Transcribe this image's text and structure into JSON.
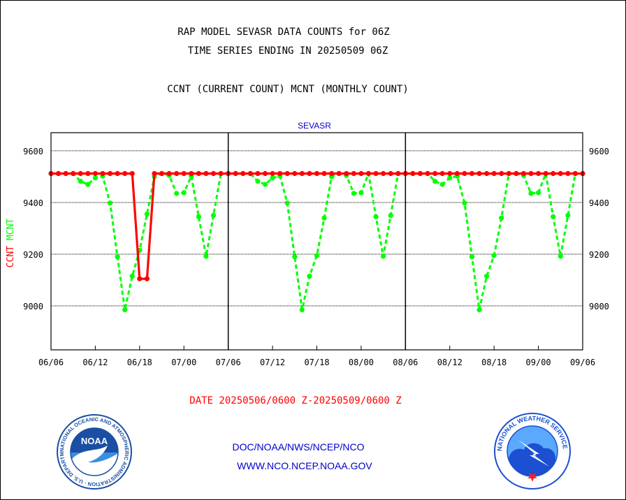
{
  "header": {
    "title_line1": "RAP MODEL SEVASR DATA COUNTS for 06Z",
    "title_line2": "TIME SERIES ENDING IN 20250509 06Z",
    "subtitle": "CCNT (CURRENT COUNT) MCNT (MONTHLY COUNT)"
  },
  "chart_data": {
    "type": "line",
    "title": "SEVASR",
    "ylabel_parts": [
      {
        "text": "CCNT",
        "color": "#ff0000"
      },
      {
        "text": "MCNT",
        "color": "#00ff00"
      }
    ],
    "ylim": [
      8830,
      9670
    ],
    "yticks": [
      9000,
      9200,
      9400,
      9600
    ],
    "grid": true,
    "x_ticks": [
      "06/06",
      "06/12",
      "06/18",
      "07/00",
      "07/06",
      "07/12",
      "07/18",
      "08/00",
      "08/06",
      "08/12",
      "08/18",
      "09/00",
      "09/06"
    ],
    "x_tick_positions": [
      0,
      6,
      12,
      18,
      24,
      30,
      36,
      42,
      48,
      54,
      60,
      66,
      72
    ],
    "x_range": [
      0,
      72
    ],
    "panel_dividers": [
      24,
      48
    ],
    "series": [
      {
        "name": "CCNT",
        "color": "#ff0000",
        "style": "solid",
        "points": [
          [
            0,
            9512
          ],
          [
            1,
            9512
          ],
          [
            2,
            9512
          ],
          [
            3,
            9512
          ],
          [
            4,
            9512
          ],
          [
            5,
            9512
          ],
          [
            6,
            9512
          ],
          [
            7,
            9512
          ],
          [
            8,
            9512
          ],
          [
            9,
            9512
          ],
          [
            10,
            9512
          ],
          [
            11,
            9512
          ],
          [
            12,
            9105
          ],
          [
            13,
            9105
          ],
          [
            14,
            9512
          ],
          [
            15,
            9512
          ],
          [
            16,
            9512
          ],
          [
            17,
            9512
          ],
          [
            18,
            9512
          ],
          [
            19,
            9512
          ],
          [
            20,
            9512
          ],
          [
            21,
            9512
          ],
          [
            22,
            9512
          ],
          [
            23,
            9512
          ],
          [
            24,
            9512
          ],
          [
            25,
            9512
          ],
          [
            26,
            9512
          ],
          [
            27,
            9512
          ],
          [
            28,
            9512
          ],
          [
            29,
            9512
          ],
          [
            30,
            9512
          ],
          [
            31,
            9512
          ],
          [
            32,
            9512
          ],
          [
            33,
            9512
          ],
          [
            34,
            9512
          ],
          [
            35,
            9512
          ],
          [
            36,
            9512
          ],
          [
            37,
            9512
          ],
          [
            38,
            9512
          ],
          [
            39,
            9512
          ],
          [
            40,
            9512
          ],
          [
            41,
            9512
          ],
          [
            42,
            9512
          ],
          [
            43,
            9512
          ],
          [
            44,
            9512
          ],
          [
            45,
            9512
          ],
          [
            46,
            9512
          ],
          [
            47,
            9512
          ],
          [
            48,
            9512
          ],
          [
            49,
            9512
          ],
          [
            50,
            9512
          ],
          [
            51,
            9512
          ],
          [
            52,
            9512
          ],
          [
            53,
            9512
          ],
          [
            54,
            9512
          ],
          [
            55,
            9512
          ],
          [
            56,
            9512
          ],
          [
            57,
            9512
          ],
          [
            58,
            9512
          ],
          [
            59,
            9512
          ],
          [
            60,
            9512
          ],
          [
            61,
            9512
          ],
          [
            62,
            9512
          ],
          [
            63,
            9512
          ],
          [
            64,
            9512
          ],
          [
            65,
            9512
          ],
          [
            66,
            9512
          ],
          [
            67,
            9512
          ],
          [
            68,
            9512
          ],
          [
            69,
            9512
          ],
          [
            70,
            9512
          ],
          [
            71,
            9512
          ],
          [
            72,
            9512
          ]
        ]
      },
      {
        "name": "MCNT",
        "color": "#00ff00",
        "style": "dashed",
        "points": [
          [
            0,
            9512
          ],
          [
            1,
            9512
          ],
          [
            2,
            9512
          ],
          [
            3,
            9512
          ],
          [
            4,
            9482
          ],
          [
            5,
            9470
          ],
          [
            6,
            9495
          ],
          [
            7,
            9502
          ],
          [
            8,
            9398
          ],
          [
            9,
            9190
          ],
          [
            10,
            8985
          ],
          [
            11,
            9115
          ],
          [
            12,
            9215
          ],
          [
            13,
            9355
          ],
          [
            14,
            9500
          ],
          [
            15,
            9512
          ],
          [
            16,
            9505
          ],
          [
            17,
            9435
          ],
          [
            18,
            9438
          ],
          [
            19,
            9502
          ],
          [
            20,
            9345
          ],
          [
            21,
            9192
          ],
          [
            22,
            9350
          ],
          [
            23,
            9512
          ],
          [
            24,
            9512
          ],
          [
            25,
            9512
          ],
          [
            26,
            9512
          ],
          [
            27,
            9512
          ],
          [
            28,
            9482
          ],
          [
            29,
            9470
          ],
          [
            30,
            9495
          ],
          [
            31,
            9502
          ],
          [
            32,
            9398
          ],
          [
            33,
            9190
          ],
          [
            34,
            8985
          ],
          [
            35,
            9115
          ],
          [
            36,
            9195
          ],
          [
            37,
            9340
          ],
          [
            38,
            9500
          ],
          [
            39,
            9512
          ],
          [
            40,
            9505
          ],
          [
            41,
            9435
          ],
          [
            42,
            9438
          ],
          [
            43,
            9512
          ],
          [
            44,
            9345
          ],
          [
            45,
            9192
          ],
          [
            46,
            9350
          ],
          [
            47,
            9512
          ],
          [
            48,
            9512
          ],
          [
            49,
            9512
          ],
          [
            50,
            9512
          ],
          [
            51,
            9512
          ],
          [
            52,
            9482
          ],
          [
            53,
            9470
          ],
          [
            54,
            9495
          ],
          [
            55,
            9502
          ],
          [
            56,
            9398
          ],
          [
            57,
            9190
          ],
          [
            58,
            8985
          ],
          [
            59,
            9115
          ],
          [
            60,
            9195
          ],
          [
            61,
            9340
          ],
          [
            62,
            9512
          ],
          [
            63,
            9512
          ],
          [
            64,
            9505
          ],
          [
            65,
            9435
          ],
          [
            66,
            9438
          ],
          [
            67,
            9512
          ],
          [
            68,
            9345
          ],
          [
            69,
            9192
          ],
          [
            70,
            9350
          ],
          [
            71,
            9512
          ],
          [
            72,
            9512
          ]
        ]
      }
    ]
  },
  "footer": {
    "date_range": "DATE 20250506/0600 Z-20250509/0600 Z",
    "org_path": "DOC/NOAA/NWS/NCEP/NCO",
    "website": "WWW.NCO.NCEP.NOAA.GOV"
  },
  "colors": {
    "footer_date": "#ff0000",
    "footer_links": "#0000cc",
    "panel_title": "#0000cc",
    "noaa_blue": "#1a4fa3",
    "nws_blue": "#1c4fd1"
  },
  "logos": {
    "noaa_label": "NOAA",
    "noaa_ring_text": "NATIONAL OCEANIC AND ATMOSPHERIC ADMINISTRATION · U.S. DEPARTMENT OF COMMERCE",
    "nws_ring_text": "NATIONAL WEATHER SERVICE"
  }
}
